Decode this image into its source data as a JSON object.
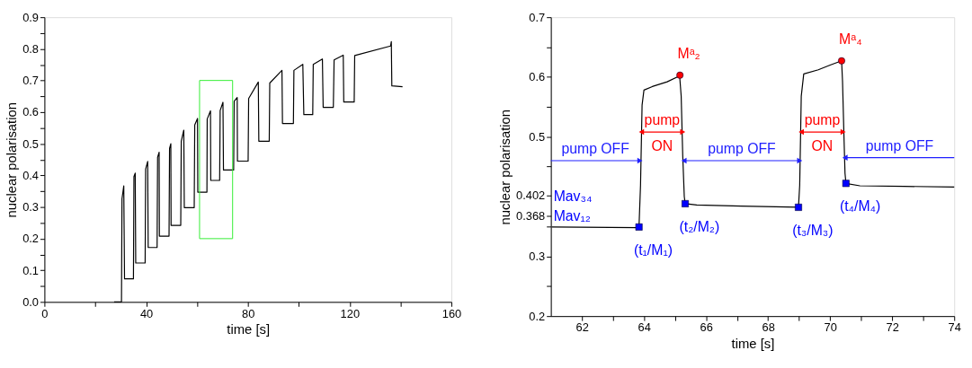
{
  "chart_data": [
    {
      "type": "line",
      "xlabel": "time [s]",
      "ylabel": "nuclear polarisation",
      "xlim": [
        0,
        160
      ],
      "ylim": [
        0,
        0.9
      ],
      "xticks": [
        0,
        {
          "value": 20,
          "label": null
        },
        40,
        {
          "value": 60,
          "label": null
        },
        80,
        {
          "value": 100,
          "label": null
        },
        120,
        {
          "value": 140,
          "label": null
        },
        160
      ],
      "yticks": [
        {
          "value": 0,
          "label": "0.0"
        },
        {
          "value": 0.05,
          "label": null
        },
        0.1,
        {
          "value": 0.15,
          "label": null
        },
        0.2,
        {
          "value": 0.25,
          "label": null
        },
        0.3,
        {
          "value": 0.35,
          "label": null
        },
        0.4,
        {
          "value": 0.45,
          "label": null
        },
        0.5,
        {
          "value": 0.55,
          "label": null
        },
        0.6,
        {
          "value": 0.65,
          "label": null
        },
        0.7,
        {
          "value": 0.75,
          "label": null
        },
        0.8,
        {
          "value": 0.85,
          "label": null
        },
        0.9
      ],
      "grid": false,
      "series": [
        {
          "color": "#000000",
          "x": [
            27.4,
            30.3,
            30.5,
            31.2,
            31.5,
            35.0,
            35.2,
            35.7,
            35.9,
            39.6,
            39.8,
            40.6,
            40.8,
            44.3,
            44.5,
            45.1,
            45.2,
            49.0,
            49.2,
            49.7,
            49.8,
            53.6,
            53.8,
            54.8,
            55.0,
            58.9,
            59.1,
            60.2,
            60.3,
            63.9,
            64.0,
            65.3,
            65.4,
            68.9,
            69.1,
            70.2,
            70.4,
            74.4,
            74.6,
            75.8,
            75.9,
            80.1,
            80.3,
            84.1,
            84.3,
            88.4,
            88.6,
            93.4,
            93.6,
            97.9,
            98.1,
            101.6,
            102.0,
            105.5,
            105.7,
            109.3,
            109.6,
            113.6,
            113.9,
            117.5,
            117.7,
            121.8,
            122.0,
            136.1,
            136.4,
            136.6,
            140.8
          ],
          "values": [
            0,
            0,
            0.326,
            0.367,
            0.073,
            0.073,
            0.396,
            0.407,
            0.123,
            0.123,
            0.42,
            0.444,
            0.172,
            0.172,
            0.457,
            0.473,
            0.208,
            0.208,
            0.485,
            0.5,
            0.242,
            0.242,
            0.508,
            0.543,
            0.298,
            0.298,
            0.559,
            0.58,
            0.347,
            0.347,
            0.578,
            0.604,
            0.384,
            0.384,
            0.605,
            0.631,
            0.417,
            0.417,
            0.634,
            0.646,
            0.445,
            0.445,
            0.643,
            0.695,
            0.508,
            0.508,
            0.692,
            0.732,
            0.564,
            0.564,
            0.732,
            0.751,
            0.592,
            0.592,
            0.751,
            0.768,
            0.615,
            0.615,
            0.765,
            0.78,
            0.632,
            0.632,
            0.779,
            0.809,
            0.823,
            0.683,
            0.68
          ]
        }
      ]
    },
    {
      "type": "line",
      "xlabel": "time [s]",
      "ylabel": "nuclear polarisation",
      "xlim": [
        61,
        74
      ],
      "ylim": [
        0.2,
        0.7
      ],
      "xticks": [
        62,
        {
          "value": 63,
          "label": null
        },
        64,
        {
          "value": 65,
          "label": null
        },
        66,
        {
          "value": 67,
          "label": null
        },
        68,
        {
          "value": 69,
          "label": null
        },
        70,
        {
          "value": 71,
          "label": null
        },
        72,
        {
          "value": 73,
          "label": null
        },
        74
      ],
      "yticks": [
        0.2,
        {
          "value": 0.25,
          "label": null
        },
        0.3,
        {
          "value": 0.35,
          "label": null
        },
        0.368,
        0.402,
        {
          "value": 0.45,
          "label": null
        },
        0.5,
        {
          "value": 0.55,
          "label": null
        },
        0.6,
        {
          "value": 0.65,
          "label": null
        },
        0.7
      ],
      "grid": false,
      "annotations": [
        "Mav₃₄",
        "Mav₁₂"
      ],
      "series": [
        {
          "color": "#000000",
          "x": [
            61.03,
            63.84,
            63.89,
            63.94,
            64.0,
            64.27,
            64.75,
            65.15,
            65.2,
            65.25,
            65.3,
            65.33,
            65.7,
            67.14,
            68.98,
            69.02,
            69.07,
            69.15,
            69.62,
            70.0,
            70.37,
            70.4,
            70.45,
            70.48,
            70.51,
            70.96,
            72.39,
            74.0
          ],
          "values": [
            0.349,
            0.348,
            0.419,
            0.553,
            0.578,
            0.584,
            0.592,
            0.602,
            0.568,
            0.469,
            0.4,
            0.388,
            0.386,
            0.384,
            0.382,
            0.419,
            0.568,
            0.605,
            0.612,
            0.62,
            0.627,
            0.593,
            0.494,
            0.439,
            0.422,
            0.418,
            0.417,
            0.416
          ]
        },
        {
          "type": "line",
          "name": "pump OFF",
          "color": "#2020ff",
          "marker": "triangle",
          "x": [
            61,
            63.87
          ],
          "values": [
            0.46,
            0.46
          ]
        },
        {
          "type": "line",
          "name": "pump\nON",
          "color": "#ff0000",
          "marker": "triangle",
          "x": [
            63.92,
            65.25
          ],
          "values": [
            0.508,
            0.508
          ]
        },
        {
          "type": "line",
          "name": "pump OFF",
          "color": "#2020ff",
          "marker": "triangle",
          "x": [
            65.29,
            69.02
          ],
          "values": [
            0.46,
            0.46
          ]
        },
        {
          "type": "line",
          "name": "pump\nON",
          "color": "#ff0000",
          "marker": "triangle",
          "x": [
            69.07,
            70.42
          ],
          "values": [
            0.508,
            0.508
          ]
        },
        {
          "type": "line",
          "name": "pump OFF",
          "color": "#2020ff",
          "marker": "triangle",
          "x": [
            70.48,
            74
          ],
          "values": [
            0.465,
            0.465
          ]
        },
        {
          "type": "scatter",
          "color": "#0000ff",
          "marker": "square",
          "x": [
            63.84,
            65.33,
            68.98,
            70.51
          ],
          "values": [
            0.349,
            0.388,
            0.382,
            0.422
          ],
          "value_labels": [
            "(t₁/M₁)",
            "(t₂/M₂)",
            "(t₃/M₃)",
            "(t₄/M₄)"
          ]
        },
        {
          "type": "scatter",
          "color": "#ff0000",
          "marker": "circle",
          "x": [
            65.16,
            70.37
          ],
          "values": [
            0.603,
            0.627
          ],
          "value_labels": [
            "Mᵃ₂",
            "Mᵃ₄"
          ]
        }
      ]
    }
  ]
}
